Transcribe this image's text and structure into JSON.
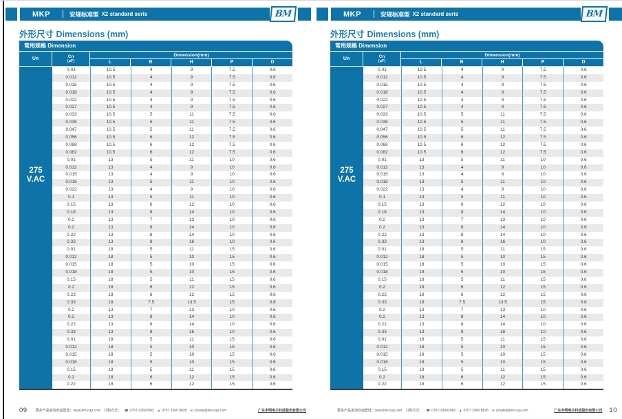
{
  "brand": {
    "series": "MKP",
    "series_cn": "安规标准型",
    "series_en": "X2 standard seris",
    "logo_text": "BM"
  },
  "section_title": "外形尺寸 Dimensions (mm)",
  "table": {
    "banner": "常用规格 Dimension",
    "col_un": "Un",
    "col_cn_main": "Cn",
    "col_cn_sub": "(μF)",
    "col_dim_group": "Dimension(mm)",
    "dim_cols": [
      "L",
      "B",
      "H",
      "P",
      "D"
    ],
    "un_value_line1": "275",
    "un_value_line2": "V.AC",
    "rows": [
      [
        "0.01",
        "10.5",
        "4",
        "9",
        "7.5",
        "0.6"
      ],
      [
        "0.012",
        "10.5",
        "4",
        "9",
        "7.5",
        "0.6"
      ],
      [
        "0.015",
        "10.5",
        "4",
        "9",
        "7.5",
        "0.6"
      ],
      [
        "0.018",
        "10.5",
        "4",
        "9",
        "7.5",
        "0.6"
      ],
      [
        "0.022",
        "10.5",
        "4",
        "9",
        "7.5",
        "0.6"
      ],
      [
        "0.027",
        "10.5",
        "4",
        "9",
        "7.5",
        "0.6"
      ],
      [
        "0.033",
        "10.5",
        "5",
        "11",
        "7.5",
        "0.6"
      ],
      [
        "0.039",
        "10.5",
        "5",
        "11",
        "7.5",
        "0.6"
      ],
      [
        "0.047",
        "10.5",
        "5",
        "11",
        "7.5",
        "0.6"
      ],
      [
        "0.056",
        "10.5",
        "6",
        "12",
        "7.5",
        "0.6"
      ],
      [
        "0.068",
        "10.5",
        "6",
        "12",
        "7.5",
        "0.6"
      ],
      [
        "0.082",
        "10.5",
        "6",
        "12",
        "7.5",
        "0.6"
      ],
      [
        "0.01",
        "13",
        "5",
        "11",
        "10",
        "0.6"
      ],
      [
        "0.012",
        "13",
        "4",
        "9",
        "10",
        "0.6"
      ],
      [
        "0.015",
        "13",
        "4",
        "9",
        "10",
        "0.6"
      ],
      [
        "0.018",
        "13",
        "5",
        "11",
        "10",
        "0.6"
      ],
      [
        "0.022",
        "13",
        "4",
        "9",
        "10",
        "0.6"
      ],
      [
        "0.1",
        "13",
        "5",
        "11",
        "10",
        "0.6"
      ],
      [
        "0.15",
        "13",
        "6",
        "12",
        "10",
        "0.6"
      ],
      [
        "0.18",
        "13",
        "8",
        "14",
        "10",
        "0.6"
      ],
      [
        "0.2",
        "13",
        "7",
        "13",
        "10",
        "0.6"
      ],
      [
        "0.2",
        "13",
        "8",
        "14",
        "10",
        "0.6"
      ],
      [
        "0.22",
        "13",
        "8",
        "14",
        "10",
        "0.6"
      ],
      [
        "0.33",
        "13",
        "8",
        "16",
        "10",
        "0.6"
      ],
      [
        "0.01",
        "18",
        "5",
        "11",
        "15",
        "0.6"
      ],
      [
        "0.012",
        "18",
        "5",
        "10",
        "15",
        "0.6"
      ],
      [
        "0.015",
        "18",
        "5",
        "10",
        "15",
        "0.6"
      ],
      [
        "0.018",
        "18",
        "5",
        "10",
        "15",
        "0.6"
      ],
      [
        "0.15",
        "18",
        "5",
        "11",
        "15",
        "0.6"
      ],
      [
        "0.2",
        "18",
        "6",
        "12",
        "15",
        "0.6"
      ],
      [
        "0.22",
        "18",
        "6",
        "12",
        "15",
        "0.6"
      ],
      [
        "0.33",
        "18",
        "7.5",
        "13.5",
        "15",
        "0.8"
      ],
      [
        "0.2",
        "13",
        "7",
        "13",
        "10",
        "0.6"
      ],
      [
        "0.2",
        "13",
        "8",
        "14",
        "10",
        "0.6"
      ],
      [
        "0.22",
        "13",
        "8",
        "14",
        "10",
        "0.6"
      ],
      [
        "0.33",
        "13",
        "8",
        "16",
        "10",
        "0.6"
      ],
      [
        "0.01",
        "18",
        "5",
        "11",
        "15",
        "0.6"
      ],
      [
        "0.012",
        "18",
        "5",
        "10",
        "15",
        "0.6"
      ],
      [
        "0.015",
        "18",
        "5",
        "10",
        "15",
        "0.6"
      ],
      [
        "0.018",
        "18",
        "5",
        "10",
        "15",
        "0.6"
      ],
      [
        "0.15",
        "18",
        "5",
        "11",
        "15",
        "0.6"
      ],
      [
        "0.2",
        "18",
        "6",
        "12",
        "15",
        "0.6"
      ],
      [
        "0.22",
        "18",
        "6",
        "12",
        "15",
        "0.6"
      ]
    ]
  },
  "footer": {
    "info": "更多产品咨询欢迎登陆：www.bm-cap.com",
    "order_label": "订购方式：",
    "phone": "0757-23602982",
    "fax": "0757 2360 8828",
    "email": "s2sale@bm-cap.com",
    "company": "广东丰明电子科技股份有限公司"
  },
  "pages": [
    {
      "page_no": "09"
    },
    {
      "page_no": "10"
    }
  ],
  "colors": {
    "primary_blue": "#0d73a8",
    "stripe_gray": "#e9e9e9",
    "cell_divider_blue": "#3f9fce",
    "title_blue": "#1c7cb2"
  }
}
